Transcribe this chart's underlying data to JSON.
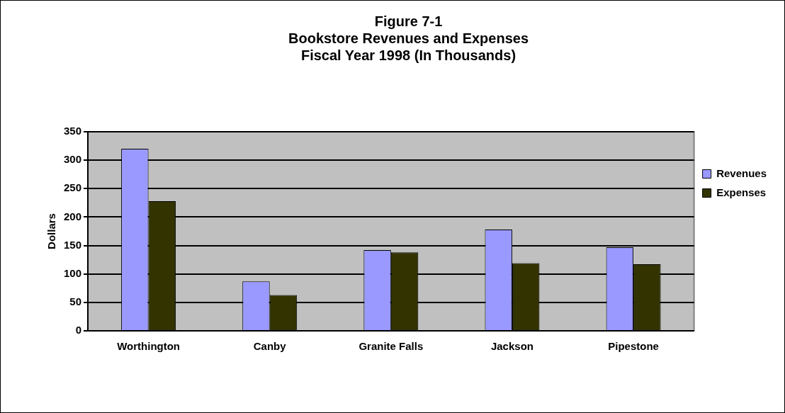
{
  "chart_data": {
    "type": "bar",
    "title": [
      "Figure 7-1",
      "Bookstore Revenues and Expenses",
      "Fiscal Year 1998 (In Thousands)"
    ],
    "ylabel": "Dollars",
    "categories": [
      "Worthington",
      "Canby",
      "Granite Falls",
      "Jackson",
      "Pipestone"
    ],
    "series": [
      {
        "name": "Revenues",
        "color": "#9999ff",
        "values": [
          320,
          87,
          142,
          178,
          147
        ]
      },
      {
        "name": "Expenses",
        "color": "#333300",
        "values": [
          228,
          63,
          138,
          119,
          117
        ]
      }
    ],
    "ylim": [
      0,
      350
    ],
    "yticks": [
      0,
      50,
      100,
      150,
      200,
      250,
      300,
      350
    ],
    "grid": "y",
    "legend": "right"
  }
}
